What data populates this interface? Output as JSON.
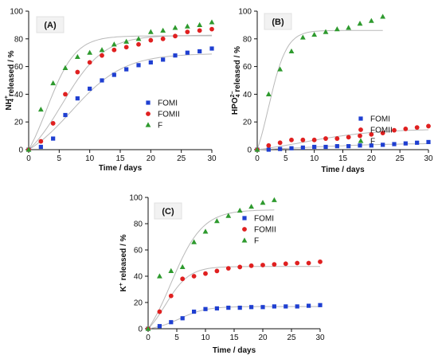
{
  "colors": {
    "FOMI": "#1f3fd1",
    "FOMII": "#e02020",
    "F": "#2e9a2e",
    "fit": "#b9b9b9",
    "axis": "#111111"
  },
  "chart_data": [
    {
      "type": "scatter",
      "panel_label": "(A)",
      "xlabel": "Time / days",
      "ylabel_main": "NH",
      "ylabel_sub": "4",
      "ylabel_sup": "+",
      "ylabel_rest": " released / %",
      "xlim": [
        0,
        30
      ],
      "ylim": [
        0,
        100
      ],
      "xticks": [
        "0",
        "5",
        "10",
        "15",
        "20",
        "25",
        "30"
      ],
      "yticks": [
        "0",
        "20",
        "40",
        "60",
        "80",
        "100"
      ],
      "legend_position": "right",
      "series": [
        {
          "name": "FOMI",
          "marker": "square",
          "x": [
            0,
            2,
            4,
            6,
            8,
            10,
            12,
            14,
            16,
            18,
            20,
            22,
            24,
            26,
            28,
            30
          ],
          "y": [
            0,
            2,
            8,
            25,
            37,
            44,
            50,
            54,
            58,
            61,
            63,
            65,
            68,
            70,
            71,
            73
          ]
        },
        {
          "name": "FOMII",
          "marker": "circle",
          "x": [
            0,
            2,
            4,
            6,
            8,
            10,
            12,
            14,
            16,
            18,
            20,
            22,
            24,
            26,
            28,
            30
          ],
          "y": [
            0,
            6,
            19,
            40,
            56,
            63,
            68,
            72,
            74,
            76,
            79,
            80,
            82,
            85,
            86,
            87
          ]
        },
        {
          "name": "F",
          "marker": "triangle",
          "x": [
            0,
            2,
            4,
            6,
            8,
            10,
            12,
            14,
            16,
            18,
            20,
            22,
            24,
            26,
            28,
            30
          ],
          "y": [
            0,
            29,
            48,
            59,
            67,
            70,
            72,
            76,
            78,
            80,
            85,
            86,
            88,
            89,
            90,
            92
          ]
        }
      ]
    },
    {
      "type": "scatter",
      "panel_label": "(B)",
      "xlabel": "Time / days",
      "ylabel_main": "HPO",
      "ylabel_sub": "4",
      "ylabel_sup": "2−",
      "ylabel_rest": " released / %",
      "xlim": [
        0,
        30
      ],
      "ylim": [
        0,
        100
      ],
      "xticks": [
        "0",
        "5",
        "10",
        "15",
        "20",
        "25",
        "30"
      ],
      "yticks": [
        "0",
        "20",
        "40",
        "60",
        "80",
        "100"
      ],
      "legend_position": "right",
      "series": [
        {
          "name": "FOMI",
          "marker": "square",
          "x": [
            0,
            2,
            4,
            6,
            8,
            10,
            12,
            14,
            16,
            18,
            20,
            22,
            24,
            26,
            28,
            30
          ],
          "y": [
            0,
            0,
            0.5,
            1,
            1.5,
            2,
            2,
            2.5,
            2.5,
            3,
            3,
            3.5,
            4,
            4.5,
            5,
            5.5
          ]
        },
        {
          "name": "FOMII",
          "marker": "circle",
          "x": [
            0,
            2,
            4,
            6,
            8,
            10,
            12,
            14,
            16,
            18,
            20,
            22,
            24,
            26,
            28,
            30
          ],
          "y": [
            0,
            3,
            5,
            7,
            7,
            7,
            8,
            8,
            9,
            10,
            11,
            12,
            14,
            15,
            16,
            17
          ]
        },
        {
          "name": "F",
          "marker": "triangle",
          "x": [
            0,
            2,
            4,
            6,
            8,
            10,
            12,
            14,
            16,
            18,
            20,
            22
          ],
          "y": [
            0,
            40,
            58,
            71,
            81,
            83,
            85,
            87,
            88,
            91,
            93,
            96
          ]
        }
      ]
    },
    {
      "type": "scatter",
      "panel_label": "(C)",
      "xlabel": "Time / days",
      "ylabel_main": "K",
      "ylabel_sub": "",
      "ylabel_sup": "+",
      "ylabel_rest": " released / %",
      "xlim": [
        0,
        30
      ],
      "ylim": [
        0,
        100
      ],
      "xticks": [
        "0",
        "5",
        "10",
        "15",
        "20",
        "25",
        "30"
      ],
      "yticks": [
        "0",
        "20",
        "40",
        "60",
        "80",
        "100"
      ],
      "legend_position": "right",
      "series": [
        {
          "name": "FOMI",
          "marker": "square",
          "x": [
            0,
            2,
            4,
            6,
            8,
            10,
            12,
            14,
            16,
            18,
            20,
            22,
            24,
            26,
            28,
            30
          ],
          "y": [
            0,
            2,
            5,
            8,
            13,
            15,
            15.5,
            16,
            16,
            16.5,
            16.5,
            17,
            17,
            17,
            17.5,
            18
          ]
        },
        {
          "name": "FOMII",
          "marker": "circle",
          "x": [
            0,
            2,
            4,
            6,
            8,
            10,
            12,
            14,
            16,
            18,
            20,
            22,
            24,
            26,
            28,
            30
          ],
          "y": [
            0,
            13,
            25,
            38,
            40,
            42,
            44,
            46,
            47,
            48,
            48.5,
            49,
            49.5,
            50,
            50,
            51
          ]
        },
        {
          "name": "F",
          "marker": "triangle",
          "x": [
            0,
            2,
            4,
            6,
            8,
            10,
            12,
            14,
            16,
            18,
            20,
            22
          ],
          "y": [
            0,
            40,
            44,
            47,
            66,
            74,
            82,
            86,
            90,
            93,
            96,
            98
          ]
        }
      ]
    }
  ]
}
